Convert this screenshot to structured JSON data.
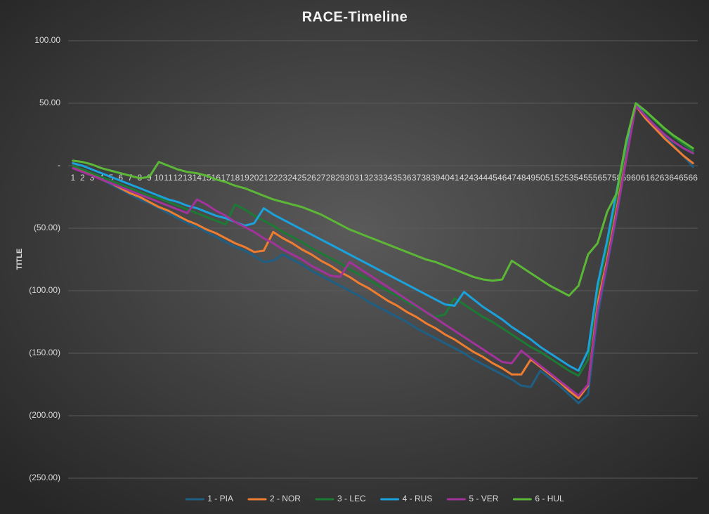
{
  "chart_data": {
    "type": "line",
    "title": "RACE-Timeline",
    "y_label": "TITLE",
    "categories": [
      "1",
      "2",
      "3",
      "4",
      "5",
      "6",
      "7",
      "8",
      "9",
      "10",
      "11",
      "12",
      "13",
      "14",
      "15",
      "16",
      "17",
      "18",
      "19",
      "20",
      "21",
      "22",
      "23",
      "24",
      "25",
      "26",
      "27",
      "28",
      "29",
      "30",
      "31",
      "32",
      "33",
      "34",
      "35",
      "36",
      "37",
      "38",
      "39",
      "40",
      "41",
      "42",
      "43",
      "44",
      "45",
      "46",
      "47",
      "48",
      "49",
      "50",
      "51",
      "52",
      "53",
      "54",
      "55",
      "56",
      "57",
      "58",
      "59",
      "60",
      "61",
      "62",
      "63",
      "64",
      "65",
      "66"
    ],
    "ylim": [
      -250,
      100
    ],
    "yticks": [
      {
        "value": 100,
        "label": "100.00"
      },
      {
        "value": 50,
        "label": "50.00"
      },
      {
        "value": 0,
        "label": "-"
      },
      {
        "value": -50,
        "label": "(50.00)"
      },
      {
        "value": -100,
        "label": "(100.00)"
      },
      {
        "value": -150,
        "label": "(150.00)"
      },
      {
        "value": -200,
        "label": "(200.00)"
      },
      {
        "value": -250,
        "label": "(250.00)"
      }
    ],
    "grid": true,
    "legend": "bottom",
    "series": [
      {
        "name": "1 - PIA",
        "color": "#1f5f84",
        "values": [
          0,
          -4,
          -8,
          -11,
          -15,
          -19,
          -23,
          -27,
          -30,
          -34,
          -38,
          -42,
          -46,
          -49,
          -53,
          -57,
          -61,
          -65,
          -68,
          -72,
          -77,
          -76,
          -71,
          -75,
          -79,
          -84,
          -88,
          -92,
          -96,
          -100,
          -104,
          -109,
          -113,
          -117,
          -121,
          -125,
          -130,
          -134,
          -138,
          -142,
          -146,
          -150,
          -155,
          -159,
          -163,
          -167,
          -171,
          -176,
          -177,
          -164,
          -170,
          -176,
          -183,
          -190,
          -183,
          -120,
          -80,
          -40,
          5,
          48,
          40,
          32,
          24,
          16,
          8,
          -1
        ]
      },
      {
        "name": "2 - NOR",
        "color": "#ee7d31",
        "values": [
          0,
          -3.6,
          -7,
          -11,
          -14,
          -18,
          -22,
          -25,
          -29,
          -33,
          -36,
          -40,
          -44,
          -47,
          -51,
          -54,
          -58,
          -62,
          -65,
          -69,
          -68,
          -53,
          -58,
          -62,
          -67,
          -71,
          -76,
          -80,
          -85,
          -89,
          -94,
          -98,
          -103,
          -108,
          -112,
          -117,
          -121,
          -126,
          -130,
          -135,
          -139,
          -144,
          -149,
          -153,
          -158,
          -162,
          -167,
          -167,
          -155,
          -161,
          -167,
          -173,
          -180,
          -186,
          -176,
          -110,
          -75,
          -35,
          8,
          48,
          38,
          30,
          22,
          15,
          8,
          2
        ]
      },
      {
        "name": "3 - LEC",
        "color": "#1d7a34",
        "values": [
          0,
          -3,
          -6,
          -9,
          -12,
          -15,
          -18,
          -21,
          -24,
          -26,
          -29,
          -32,
          -35,
          -38,
          -41,
          -44,
          -47,
          -31,
          -35,
          -40,
          -44,
          -48,
          -53,
          -57,
          -61,
          -66,
          -70,
          -74,
          -78,
          -83,
          -87,
          -91,
          -96,
          -100,
          -104,
          -109,
          -113,
          -117,
          -121,
          -119,
          -106,
          -111,
          -116,
          -121,
          -125,
          -130,
          -135,
          -140,
          -145,
          -149,
          -154,
          -159,
          -164,
          -168,
          -155,
          -100,
          -65,
          -25,
          15,
          50,
          43,
          36,
          29,
          23,
          17,
          12
        ]
      },
      {
        "name": "4 - RUS",
        "color": "#1ba1db",
        "values": [
          2,
          0,
          -3,
          -6,
          -9,
          -12,
          -15,
          -18,
          -21,
          -24,
          -27,
          -29,
          -32,
          -34,
          -37,
          -40,
          -42,
          -45,
          -48,
          -46,
          -34,
          -39,
          -43,
          -47,
          -51,
          -55,
          -59,
          -63,
          -67,
          -71,
          -75,
          -79,
          -83,
          -87,
          -91,
          -95,
          -99,
          -103,
          -107,
          -111,
          -112,
          -101,
          -107,
          -113,
          -118,
          -123,
          -129,
          -134,
          -139,
          -145,
          -150,
          -155,
          -160,
          -164,
          -148,
          -95,
          -60,
          -20,
          18,
          49,
          40,
          32,
          25,
          19,
          14,
          10
        ]
      },
      {
        "name": "5 - VER",
        "color": "#a1339b",
        "values": [
          -2,
          -5,
          -8,
          -11,
          -14,
          -17,
          -20,
          -23,
          -26,
          -29,
          -32,
          -35,
          -38,
          -27,
          -31,
          -36,
          -40,
          -45,
          -49,
          -53,
          -58,
          -62,
          -67,
          -71,
          -75,
          -80,
          -84,
          -88,
          -89,
          -77,
          -82,
          -87,
          -92,
          -97,
          -102,
          -107,
          -112,
          -117,
          -122,
          -127,
          -132,
          -137,
          -142,
          -147,
          -152,
          -157,
          -158,
          -148,
          -154,
          -160,
          -166,
          -172,
          -178,
          -184,
          -175,
          -115,
          -78,
          -38,
          5,
          48,
          40,
          32,
          25,
          19,
          14,
          10
        ]
      },
      {
        "name": "6 - HUL",
        "color": "#5cb737",
        "values": [
          4,
          3,
          1,
          -2,
          -4,
          -6,
          -8,
          -10,
          -9,
          3,
          0,
          -3,
          -5,
          -6,
          -8,
          -11,
          -13,
          -16,
          -18,
          -21,
          -24,
          -27,
          -29,
          -31,
          -33,
          -36,
          -39,
          -43,
          -47,
          -51,
          -54,
          -57,
          -60,
          -63,
          -66,
          -69,
          -72,
          -75,
          -77,
          -80,
          -83,
          -86,
          -89,
          -91,
          -92,
          -91,
          -76,
          -81,
          -86,
          -91,
          -96,
          -100,
          -104,
          -96,
          -71,
          -62,
          -37,
          -22,
          20,
          50,
          44,
          37,
          30,
          24,
          19,
          14
        ]
      }
    ]
  }
}
